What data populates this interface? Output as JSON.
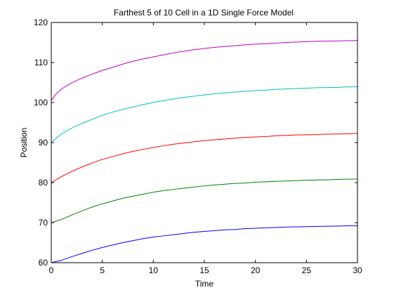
{
  "chart_data": {
    "type": "line",
    "title": "Farthest 5 of 10 Cell in a 1D Single Force Model",
    "xlabel": "Time",
    "ylabel": "Position",
    "xlim": [
      0,
      30
    ],
    "ylim": [
      60,
      120
    ],
    "xticks": [
      0,
      5,
      10,
      15,
      20,
      25,
      30
    ],
    "yticks": [
      60,
      70,
      80,
      90,
      100,
      110,
      120
    ],
    "grid": false,
    "legend": "none",
    "series": [
      {
        "color": "#0000ff",
        "x": [
          0,
          1,
          2,
          3,
          4,
          5,
          6,
          7,
          8,
          9,
          10,
          11,
          12,
          13,
          14,
          15,
          16,
          17,
          18,
          19,
          20,
          21,
          22,
          23,
          24,
          25,
          26,
          27,
          28,
          29,
          30
        ],
        "values": [
          60,
          60.6,
          61.5,
          62.3,
          63.1,
          63.8,
          64.4,
          65.0,
          65.5,
          66.0,
          66.4,
          66.7,
          67.0,
          67.3,
          67.6,
          67.8,
          68.0,
          68.2,
          68.3,
          68.5,
          68.6,
          68.7,
          68.8,
          68.9,
          68.95,
          69.0,
          69.05,
          69.1,
          69.15,
          69.2,
          69.25
        ]
      },
      {
        "color": "#008000",
        "x": [
          0,
          1,
          2,
          3,
          4,
          5,
          6,
          7,
          8,
          9,
          10,
          11,
          12,
          13,
          14,
          15,
          16,
          17,
          18,
          19,
          20,
          21,
          22,
          23,
          24,
          25,
          26,
          27,
          28,
          29,
          30
        ],
        "values": [
          70,
          70.8,
          71.9,
          72.9,
          73.9,
          74.7,
          75.4,
          76.1,
          76.6,
          77.1,
          77.6,
          78.0,
          78.3,
          78.6,
          78.9,
          79.2,
          79.4,
          79.6,
          79.8,
          79.9,
          80.1,
          80.2,
          80.3,
          80.4,
          80.5,
          80.6,
          80.65,
          80.7,
          80.8,
          80.85,
          80.9
        ]
      },
      {
        "color": "#ff0000",
        "x": [
          0,
          1,
          2,
          3,
          4,
          5,
          6,
          7,
          8,
          9,
          10,
          11,
          12,
          13,
          14,
          15,
          16,
          17,
          18,
          19,
          20,
          21,
          22,
          23,
          24,
          25,
          26,
          27,
          28,
          29,
          30
        ],
        "values": [
          80,
          81.5,
          82.8,
          83.9,
          84.9,
          85.8,
          86.5,
          87.2,
          87.8,
          88.3,
          88.8,
          89.2,
          89.6,
          89.9,
          90.2,
          90.5,
          90.7,
          90.9,
          91.1,
          91.3,
          91.4,
          91.5,
          91.7,
          91.8,
          91.9,
          91.95,
          92.0,
          92.1,
          92.15,
          92.2,
          92.3
        ]
      },
      {
        "color": "#00bfbf",
        "x": [
          0,
          1,
          2,
          3,
          4,
          5,
          6,
          7,
          8,
          9,
          10,
          11,
          12,
          13,
          14,
          15,
          16,
          17,
          18,
          19,
          20,
          21,
          22,
          23,
          24,
          25,
          26,
          27,
          28,
          29,
          30
        ],
        "values": [
          90,
          92.2,
          93.6,
          94.8,
          95.8,
          96.8,
          97.6,
          98.3,
          98.9,
          99.5,
          100.0,
          100.5,
          100.9,
          101.3,
          101.6,
          101.9,
          102.2,
          102.4,
          102.6,
          102.8,
          103.0,
          103.1,
          103.3,
          103.4,
          103.5,
          103.6,
          103.7,
          103.75,
          103.8,
          103.9,
          103.95
        ]
      },
      {
        "color": "#bf00bf",
        "x": [
          0,
          0.5,
          1,
          2,
          3,
          4,
          5,
          6,
          7,
          8,
          9,
          10,
          11,
          12,
          13,
          14,
          15,
          16,
          17,
          18,
          19,
          20,
          21,
          22,
          23,
          24,
          25,
          26,
          27,
          28,
          29,
          30
        ],
        "values": [
          100.5,
          102.2,
          103.4,
          104.9,
          106.1,
          107.1,
          108.0,
          108.8,
          109.6,
          110.3,
          110.9,
          111.4,
          111.9,
          112.4,
          112.8,
          113.2,
          113.5,
          113.8,
          114.0,
          114.2,
          114.4,
          114.6,
          114.7,
          114.85,
          115.0,
          115.1,
          115.2,
          115.3,
          115.35,
          115.4,
          115.45,
          115.5
        ]
      }
    ]
  }
}
